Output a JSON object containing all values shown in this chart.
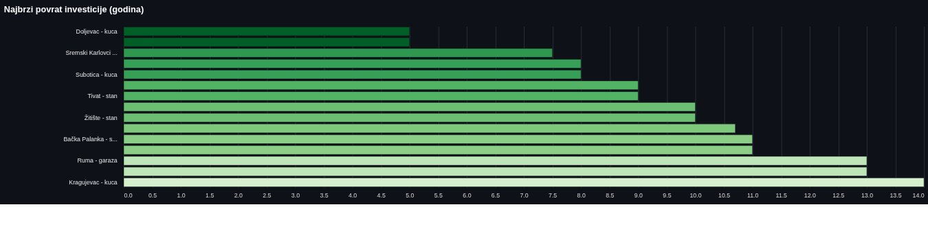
{
  "chart_data": {
    "type": "bar",
    "orientation": "horizontal",
    "title": "Najbrzi povrat investicije (godina)",
    "categories": [
      "Doljevac - kuca",
      null,
      "Sremski Karlovci ...",
      null,
      "Subotica - kuca",
      null,
      "Tivat - stan",
      null,
      "Žitište - stan",
      null,
      "Bačka Palanka - s...",
      null,
      "Ruma - garaza",
      null,
      "Kragujevac - kuca"
    ],
    "values": [
      5,
      5,
      7.5,
      8,
      8,
      9,
      9,
      10,
      10,
      10.7,
      11,
      11,
      13,
      13,
      14
    ],
    "colors": [
      "#005f26",
      "#005f26",
      "#2f9850",
      "#36a057",
      "#36a057",
      "#52b365",
      "#52b365",
      "#6cbf72",
      "#6cbf72",
      "#7fc97c",
      "#8bcf87",
      "#8bcf87",
      "#bfe6b8",
      "#bfe6b8",
      "#d6f0ce"
    ],
    "xlim": [
      0,
      14.0
    ],
    "xticks": [
      {
        "value": 0,
        "label": "0.0"
      },
      {
        "value": 0.5,
        "label": "0.5"
      },
      {
        "value": 1,
        "label": "1.0"
      },
      {
        "value": 1.5,
        "label": "1.5"
      },
      {
        "value": 2,
        "label": "2.0"
      },
      {
        "value": 2.5,
        "label": "2.5"
      },
      {
        "value": 3,
        "label": "3.0"
      },
      {
        "value": 3.5,
        "label": "3.5"
      },
      {
        "value": 4,
        "label": "4.0"
      },
      {
        "value": 4.5,
        "label": "4.5"
      },
      {
        "value": 5,
        "label": "5.0"
      },
      {
        "value": 5.5,
        "label": "5.5"
      },
      {
        "value": 6,
        "label": "6.0"
      },
      {
        "value": 6.5,
        "label": "6.5"
      },
      {
        "value": 7,
        "label": "7.0"
      },
      {
        "value": 7.5,
        "label": "7.5"
      },
      {
        "value": 8,
        "label": "8.0"
      },
      {
        "value": 8.5,
        "label": "8.5"
      },
      {
        "value": 9,
        "label": "9.0"
      },
      {
        "value": 9.5,
        "label": "9.5"
      },
      {
        "value": 10,
        "label": "10.0"
      },
      {
        "value": 10.5,
        "label": "10.5"
      },
      {
        "value": 11,
        "label": "11.0"
      },
      {
        "value": 11.5,
        "label": "11.5"
      },
      {
        "value": 12,
        "label": "12.0"
      },
      {
        "value": 12.5,
        "label": "12.5"
      },
      {
        "value": 13,
        "label": "13.0"
      },
      {
        "value": 13.5,
        "label": "13.5"
      },
      {
        "value": 14,
        "label": "14.0"
      }
    ],
    "grid": "x"
  }
}
